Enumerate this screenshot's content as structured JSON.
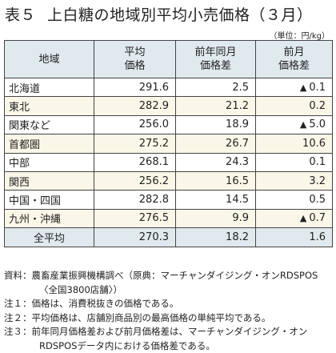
{
  "title": {
    "number": "表５",
    "text": "上白糖の地域別平均小売価格（３月）"
  },
  "unit": "（単位：円/kg）",
  "table": {
    "headers": {
      "region": [
        "地域"
      ],
      "avg": [
        "平均",
        "価格"
      ],
      "yoy": [
        "前年同月",
        "価格差"
      ],
      "mom": [
        "前月",
        "価格差"
      ]
    },
    "rows": [
      {
        "region": "北海道",
        "avg": "291.6",
        "yoy": "2.5",
        "mom_marker": "▲",
        "mom": "0.1"
      },
      {
        "region": "東北",
        "avg": "282.9",
        "yoy": "21.2",
        "mom_marker": "",
        "mom": "0.2"
      },
      {
        "region": "関東など",
        "avg": "256.0",
        "yoy": "18.9",
        "mom_marker": "▲",
        "mom": "5.0"
      },
      {
        "region": "首都圏",
        "avg": "275.2",
        "yoy": "26.7",
        "mom_marker": "",
        "mom": "10.6"
      },
      {
        "region": "中部",
        "avg": "268.1",
        "yoy": "24.3",
        "mom_marker": "",
        "mom": "0.1"
      },
      {
        "region": "関西",
        "avg": "256.2",
        "yoy": "16.5",
        "mom_marker": "",
        "mom": "3.2"
      },
      {
        "region": "中国・四国",
        "avg": "282.8",
        "yoy": "14.5",
        "mom_marker": "",
        "mom": "0.5"
      },
      {
        "region": "九州・沖縄",
        "avg": "276.5",
        "yoy": "9.9",
        "mom_marker": "▲",
        "mom": "0.7"
      }
    ],
    "total": {
      "region": "全平均",
      "avg": "270.3",
      "yoy": "18.2",
      "mom_marker": "",
      "mom": "1.6"
    }
  },
  "notes": {
    "source_label": "資料：",
    "source_text": "農畜産業振興機構調べ（原典：マーチャンダイジング・オンRDSPOS",
    "source_cont": "〈全国3800店舗〉）",
    "note1_label": "注１：",
    "note1_text": "価格は、消費税抜きの価格である。",
    "note2_label": "注２：",
    "note2_text": "平均価格は、店舗別商品別の最高価格の単純平均である。",
    "note3_label": "注３：",
    "note3_text": "前年同月価格差および前月価格差は、マーチャンダイジング・オン",
    "note3_cont": "RDSPOSデータ内における価格差である。"
  }
}
